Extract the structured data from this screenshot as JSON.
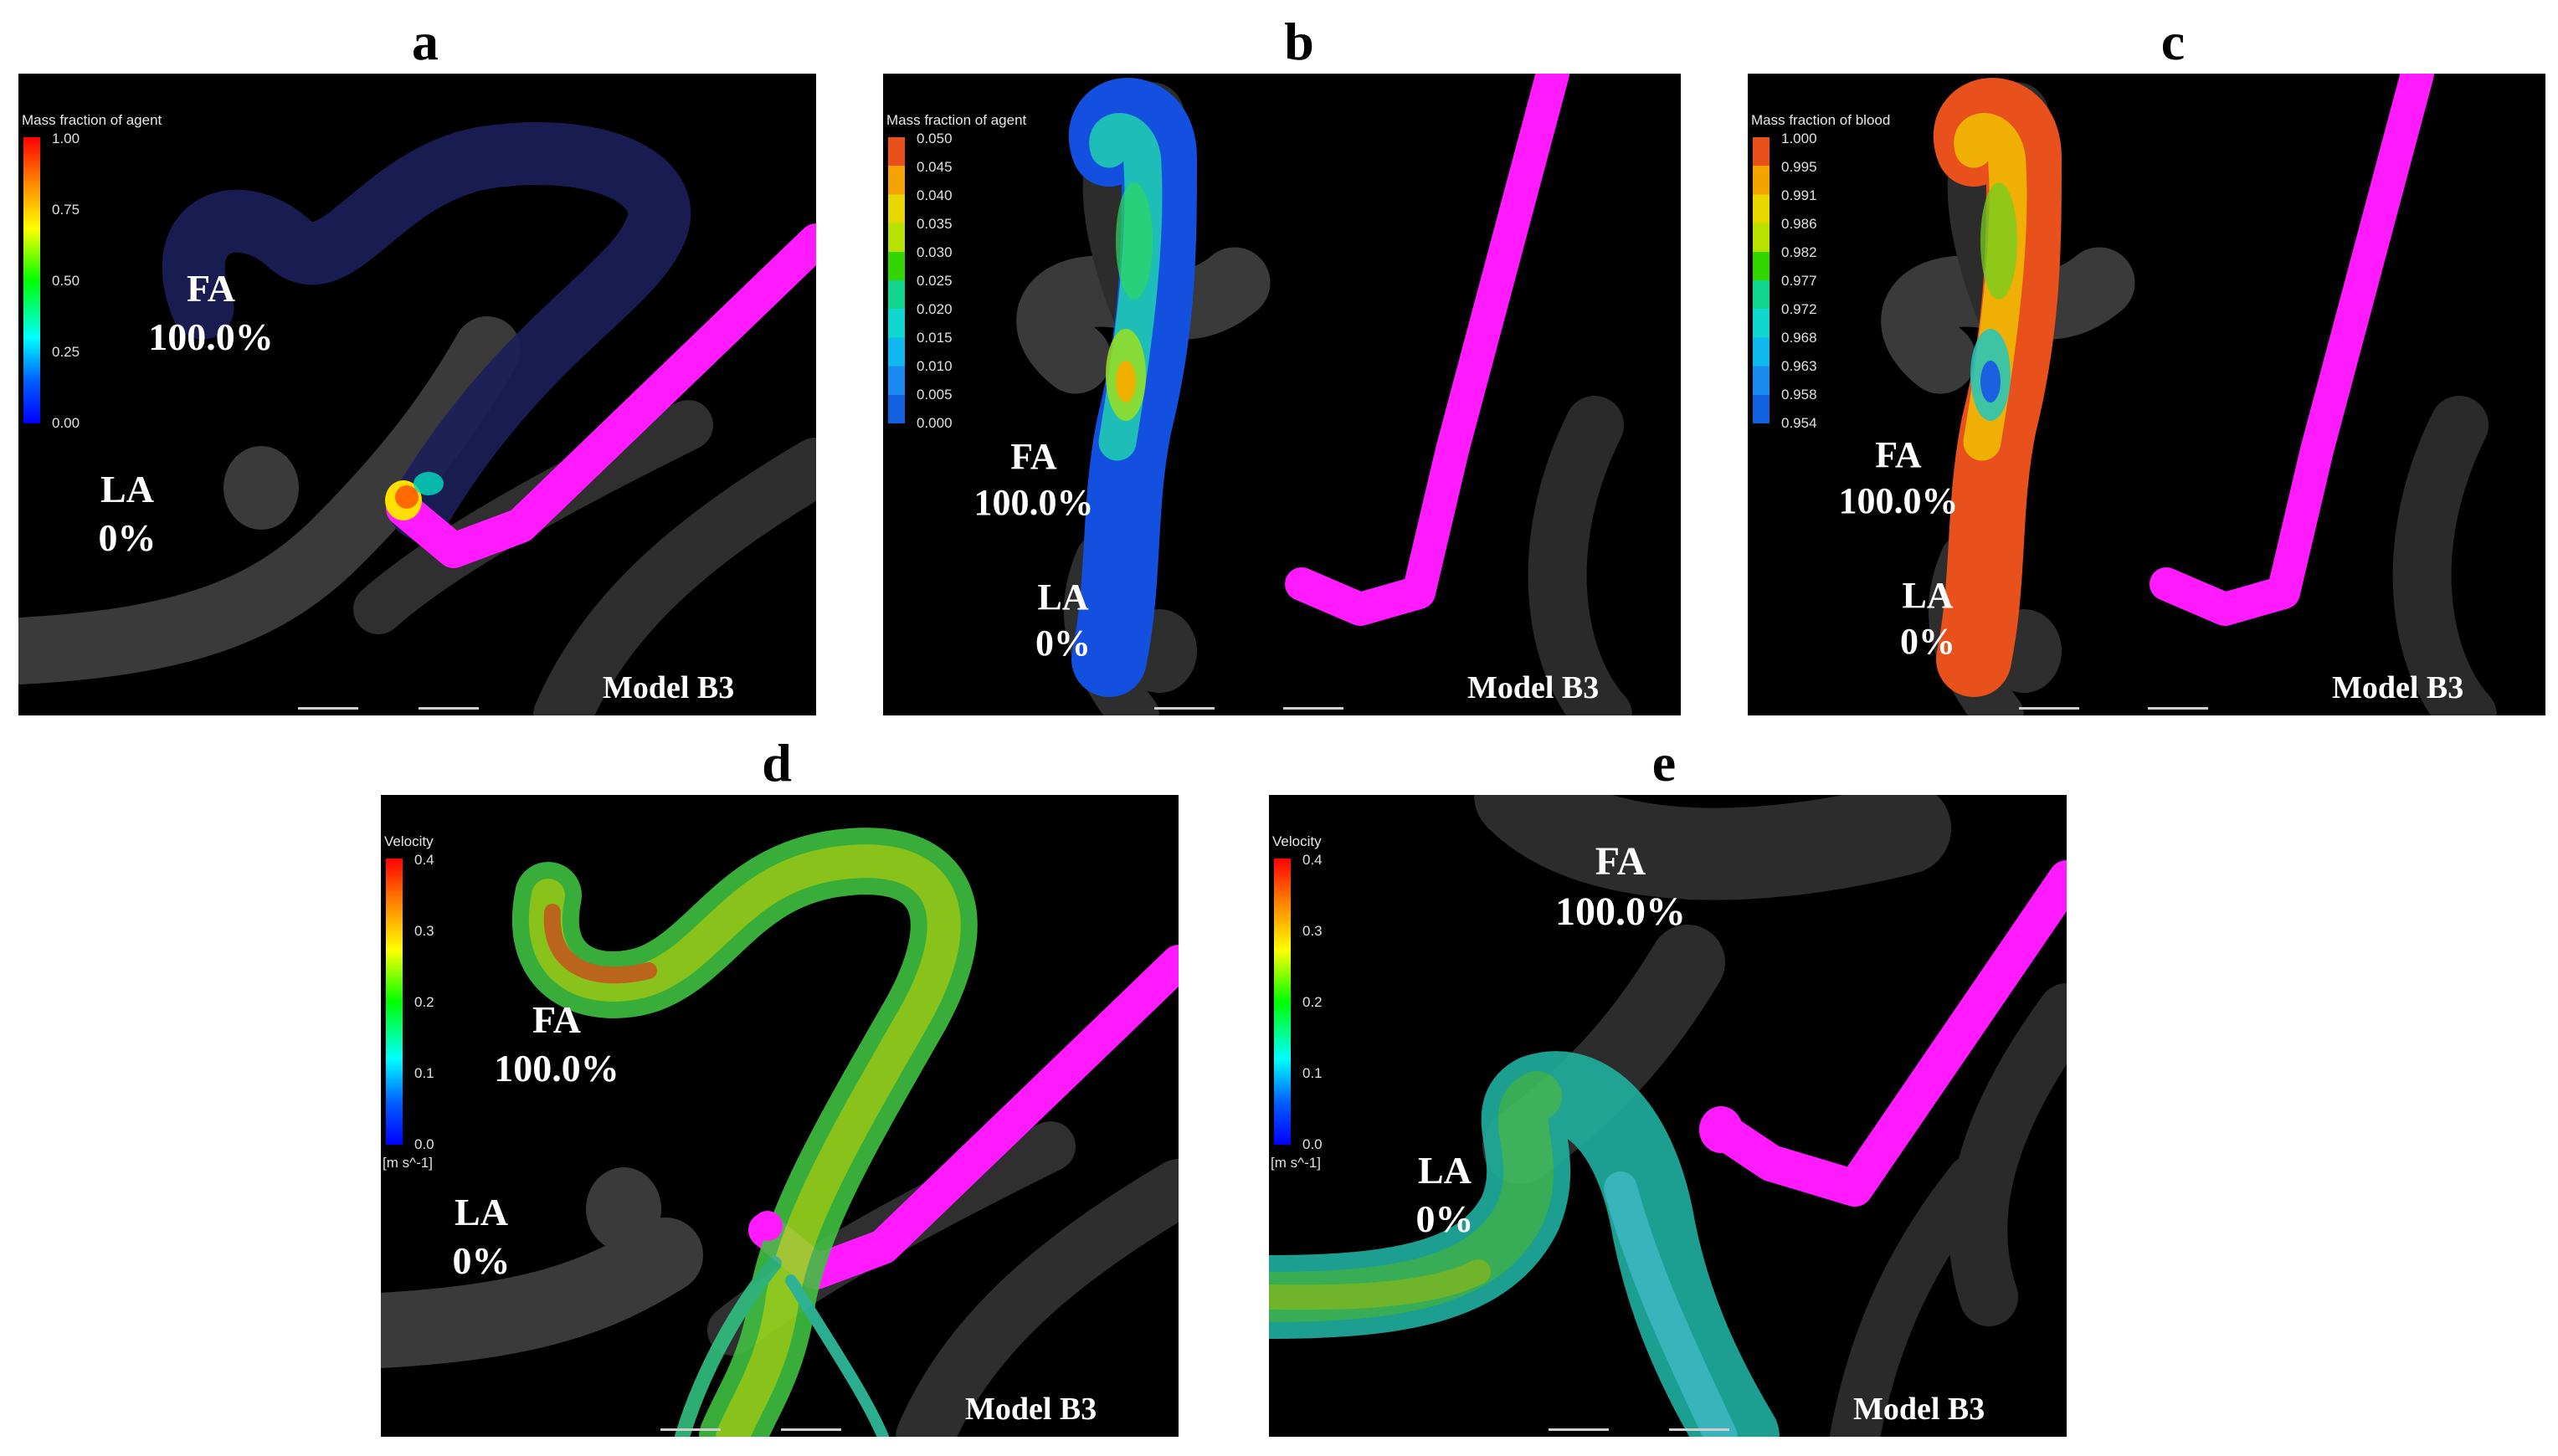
{
  "panels": {
    "a": {
      "letter": "a",
      "colorbar_title": "Mass fraction of agent",
      "ticks": [
        "1.00",
        "0.75",
        "0.50",
        "0.25",
        "0.00"
      ],
      "fa_label": "FA",
      "fa_value": "100.0%",
      "la_label": "LA",
      "la_value": "0%",
      "model": "Model B3"
    },
    "b": {
      "letter": "b",
      "colorbar_title": "Mass fraction of agent",
      "ticks": [
        "0.050",
        "0.045",
        "0.040",
        "0.035",
        "0.030",
        "0.025",
        "0.020",
        "0.015",
        "0.010",
        "0.005",
        "0.000"
      ],
      "fa_label": "FA",
      "fa_value": "100.0%",
      "la_label": "LA",
      "la_value": "0%",
      "model": "Model B3"
    },
    "c": {
      "letter": "c",
      "colorbar_title": "Mass fraction of blood",
      "ticks": [
        "1.000",
        "0.995",
        "0.991",
        "0.986",
        "0.982",
        "0.977",
        "0.972",
        "0.968",
        "0.963",
        "0.958",
        "0.954"
      ],
      "fa_label": "FA",
      "fa_value": "100.0%",
      "la_label": "LA",
      "la_value": "0%",
      "model": "Model B3"
    },
    "d": {
      "letter": "d",
      "colorbar_title": "Velocity",
      "ticks": [
        "0.4",
        "0.3",
        "0.2",
        "0.1",
        "0.0"
      ],
      "unit": "[m s^-1]",
      "fa_label": "FA",
      "fa_value": "100.0%",
      "la_label": "LA",
      "la_value": "0%",
      "model": "Model B3"
    },
    "e": {
      "letter": "e",
      "colorbar_title": "Velocity",
      "ticks": [
        "0.4",
        "0.3",
        "0.2",
        "0.1",
        "0.0"
      ],
      "unit": "[m s^-1]",
      "fa_label": "FA",
      "fa_value": "100.0%",
      "la_label": "LA",
      "la_value": "0%",
      "model": "Model B3"
    }
  },
  "colors": {
    "catheter": "#ff1aff",
    "vessel": "#3a3a3a",
    "background": "#000000"
  }
}
